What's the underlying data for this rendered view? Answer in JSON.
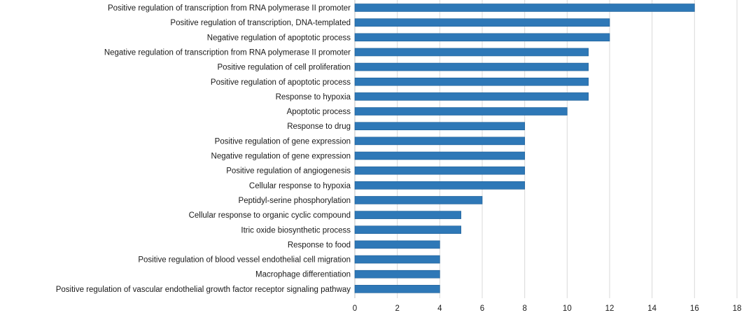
{
  "colors": {
    "bar": "#2e78b7",
    "bar_edge": "#1f5f96",
    "grid": "#d9d9d9"
  },
  "chart_data": {
    "type": "bar",
    "orientation": "horizontal",
    "title": "",
    "xlabel": "",
    "ylabel": "",
    "xlim": [
      0,
      18
    ],
    "x_ticks": [
      0,
      2,
      4,
      6,
      8,
      10,
      12,
      14,
      16,
      18
    ],
    "grid": "vertical",
    "legend": "none",
    "categories": [
      "Positive regulation of transcription from RNA polymerase II promoter",
      "Positive regulation of transcription, DNA-templated",
      "Negative regulation of apoptotic process",
      "Negative regulation of transcription from RNA polymerase II promoter",
      "Positive regulation of cell proliferation",
      "Positive regulation of apoptotic process",
      "Response to hypoxia",
      "Apoptotic process",
      "Response to drug",
      "Positive regulation of gene expression",
      "Negative regulation of gene expression",
      "Positive regulation of angiogenesis",
      "Cellular response to hypoxia",
      "Peptidyl-serine phosphorylation",
      "Cellular response to organic cyclic compound",
      "Itric oxide biosynthetic process",
      "Response to food",
      "Positive regulation of blood vessel endothelial cell migration",
      "Macrophage differentiation",
      "Positive regulation of vascular endothelial growth factor receptor signaling pathway"
    ],
    "values": [
      16,
      12,
      12,
      11,
      11,
      11,
      11,
      10,
      8,
      8,
      8,
      8,
      8,
      6,
      5,
      5,
      4,
      4,
      4,
      4
    ]
  }
}
